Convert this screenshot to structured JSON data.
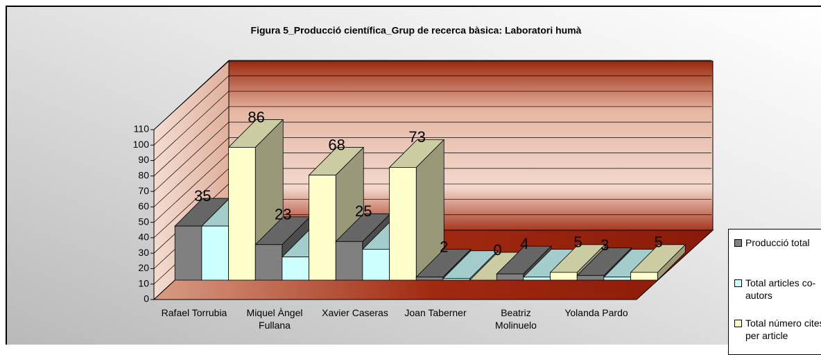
{
  "chart_data": {
    "type": "bar3d",
    "title": "Figura 5_Producció científica_Grup de recerca bàsica: Laboratori humà",
    "categories": [
      "Rafael Torrubia",
      "Miquel Àngel Fullana",
      "Xavier Caseras",
      "Joan Taberner",
      "Beatriz Molinuelo",
      "Yolanda Pardo"
    ],
    "series": [
      {
        "name": "Producció total",
        "color": "#808080",
        "values": [
          35,
          23,
          25,
          2,
          4,
          3
        ],
        "show_labels": true
      },
      {
        "name": "Total articles co-autors",
        "color": "#ccffff",
        "values": [
          35,
          15,
          20,
          1,
          2,
          2
        ],
        "show_labels": false
      },
      {
        "name": "Total número cites per article",
        "color": "#ffffcc",
        "values": [
          86,
          68,
          73,
          0,
          5,
          5
        ],
        "show_labels": true
      }
    ],
    "ylim": [
      0,
      110
    ],
    "yticks": [
      0,
      10,
      20,
      30,
      40,
      50,
      60,
      70,
      80,
      90,
      100,
      110
    ],
    "grid": true
  }
}
